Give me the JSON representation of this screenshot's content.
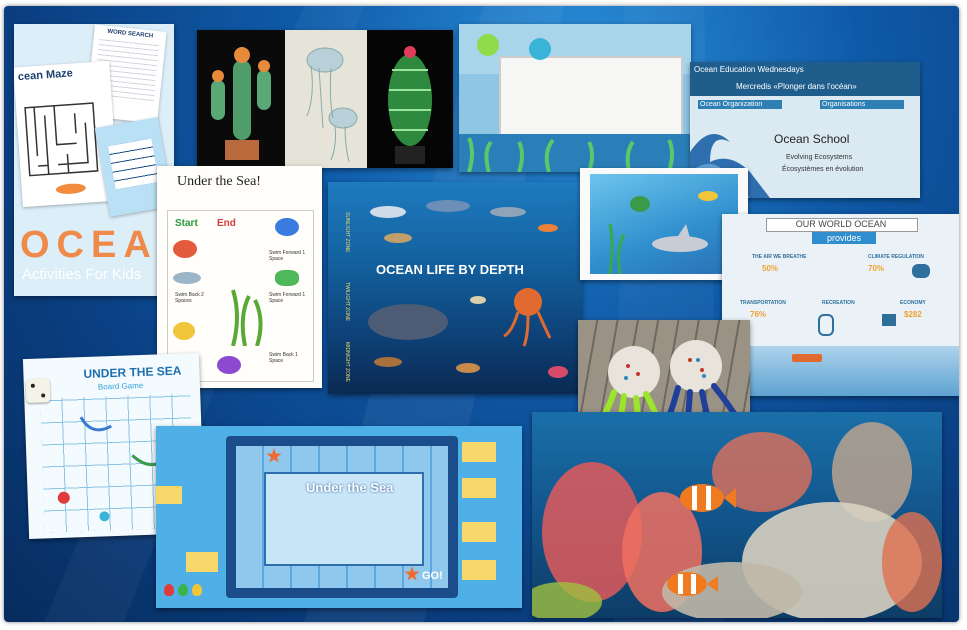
{
  "kids_activities": {
    "word_search_title": "WORD SEARCH",
    "maze_title": "cean Maze",
    "main_title": "OCEAN",
    "subtitle": "Activities For Kids"
  },
  "under_sea_board": {
    "title": "Under the Sea!",
    "start": "Start",
    "end": "End",
    "cells": [
      "Swim Forward 1 Space",
      "Swim Back 2 Spaces",
      "Swim Forward 1 Space",
      "Swim Back 1 Space"
    ]
  },
  "ocean_depth_poster": {
    "title": "OCEAN LIFE BY DEPTH",
    "zones": [
      "SUNLIGHT ZONE",
      "TWILIGHT ZONE",
      "MIDNIGHT ZONE"
    ]
  },
  "ocean_education": {
    "header": "Ocean Education Wednesdays",
    "subheader": "Mercredis «Plonger dans l'océan»",
    "tab_left": "Ocean Organization",
    "tab_right": "Organisations",
    "school": "Ocean School",
    "line1": "Evolving Ecosystems",
    "line2": "Écosystèmes en évolution"
  },
  "world_ocean": {
    "title": "OUR WORLD OCEAN",
    "subtitle": "provides",
    "items": [
      "THE AIR WE BREATHE",
      "CLIMATE REGULATION",
      "TRANSPORTATION",
      "RECREATION",
      "ECONOMY"
    ],
    "stats": [
      "50%",
      "70%",
      "76%",
      "$282"
    ]
  },
  "boards_game": {
    "title": "UNDER THE SEA",
    "subtitle": "Board Game"
  },
  "printable_game": {
    "title": "Under the Sea",
    "go": "GO!"
  }
}
